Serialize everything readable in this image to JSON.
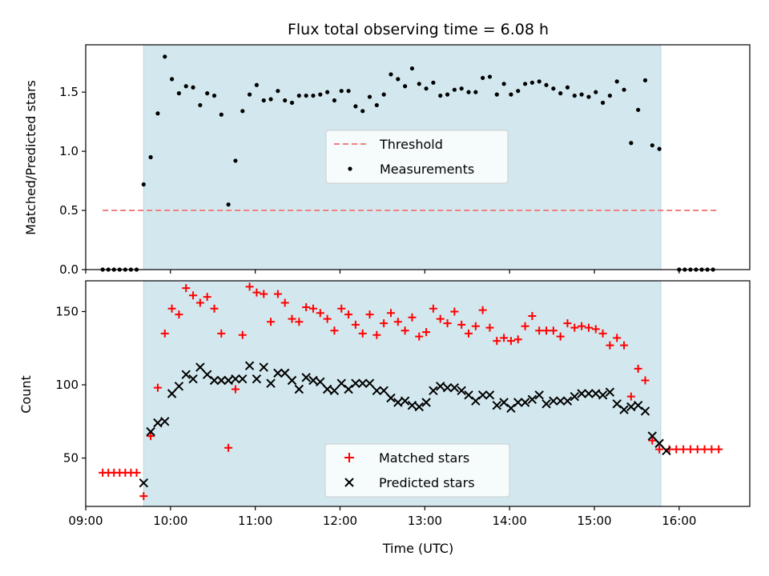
{
  "chart_data": [
    {
      "type": "scatter",
      "title": "Flux total observing time = 6.08 h",
      "xlabel": "",
      "ylabel": "Matched/Predicted stars",
      "xlim": [
        "09:00",
        "16:50"
      ],
      "ylim": [
        0,
        1.9
      ],
      "x_ticks": [
        "09:00",
        "10:00",
        "11:00",
        "12:00",
        "13:00",
        "14:00",
        "15:00",
        "16:00"
      ],
      "x_tick_labels_shown": false,
      "y_ticks": [
        "0.0",
        "0.5",
        "1.0",
        "1.5"
      ],
      "shaded_interval": [
        "09:41",
        "15:47"
      ],
      "shaded_color": "#d3e8ee",
      "grid": false,
      "legend_position": "center",
      "legend": [
        "Threshold",
        "Measurements"
      ],
      "threshold": {
        "name": "Threshold",
        "value": 0.5,
        "x": [
          "09:12",
          "16:27"
        ],
        "color": "#f08080",
        "style": "dashed"
      },
      "series": [
        {
          "name": "Measurements",
          "marker": "dot",
          "color": "#000000",
          "points": [
            [
              "09:12",
              0
            ],
            [
              "09:16",
              0
            ],
            [
              "09:20",
              0
            ],
            [
              "09:24",
              0
            ],
            [
              "09:28",
              0
            ],
            [
              "09:32",
              0
            ],
            [
              "09:36",
              0
            ],
            [
              "09:41",
              0.72
            ],
            [
              "09:46",
              0.95
            ],
            [
              "09:51",
              1.32
            ],
            [
              "09:56",
              1.8
            ],
            [
              "10:01",
              1.61
            ],
            [
              "10:06",
              1.49
            ],
            [
              "10:11",
              1.55
            ],
            [
              "10:16",
              1.54
            ],
            [
              "10:21",
              1.39
            ],
            [
              "10:26",
              1.49
            ],
            [
              "10:31",
              1.47
            ],
            [
              "10:36",
              1.31
            ],
            [
              "10:41",
              0.55
            ],
            [
              "10:46",
              0.92
            ],
            [
              "10:51",
              1.34
            ],
            [
              "10:56",
              1.48
            ],
            [
              "11:01",
              1.56
            ],
            [
              "11:06",
              1.43
            ],
            [
              "11:11",
              1.44
            ],
            [
              "11:16",
              1.51
            ],
            [
              "11:21",
              1.43
            ],
            [
              "11:26",
              1.41
            ],
            [
              "11:31",
              1.47
            ],
            [
              "11:36",
              1.47
            ],
            [
              "11:41",
              1.47
            ],
            [
              "11:46",
              1.48
            ],
            [
              "11:51",
              1.5
            ],
            [
              "11:56",
              1.43
            ],
            [
              "12:01",
              1.51
            ],
            [
              "12:06",
              1.51
            ],
            [
              "12:11",
              1.38
            ],
            [
              "12:16",
              1.34
            ],
            [
              "12:21",
              1.46
            ],
            [
              "12:26",
              1.39
            ],
            [
              "12:31",
              1.48
            ],
            [
              "12:36",
              1.65
            ],
            [
              "12:41",
              1.61
            ],
            [
              "12:46",
              1.55
            ],
            [
              "12:51",
              1.7
            ],
            [
              "12:56",
              1.57
            ],
            [
              "13:01",
              1.53
            ],
            [
              "13:06",
              1.58
            ],
            [
              "13:11",
              1.47
            ],
            [
              "13:16",
              1.48
            ],
            [
              "13:21",
              1.52
            ],
            [
              "13:26",
              1.53
            ],
            [
              "13:31",
              1.5
            ],
            [
              "13:36",
              1.5
            ],
            [
              "13:41",
              1.62
            ],
            [
              "13:46",
              1.63
            ],
            [
              "13:51",
              1.48
            ],
            [
              "13:56",
              1.57
            ],
            [
              "14:01",
              1.48
            ],
            [
              "14:06",
              1.51
            ],
            [
              "14:11",
              1.57
            ],
            [
              "14:16",
              1.58
            ],
            [
              "14:21",
              1.59
            ],
            [
              "14:26",
              1.56
            ],
            [
              "14:31",
              1.53
            ],
            [
              "14:36",
              1.49
            ],
            [
              "14:41",
              1.54
            ],
            [
              "14:46",
              1.47
            ],
            [
              "14:51",
              1.48
            ],
            [
              "14:56",
              1.46
            ],
            [
              "15:01",
              1.5
            ],
            [
              "15:06",
              1.41
            ],
            [
              "15:11",
              1.47
            ],
            [
              "15:16",
              1.59
            ],
            [
              "15:21",
              1.52
            ],
            [
              "15:26",
              1.07
            ],
            [
              "15:31",
              1.35
            ],
            [
              "15:36",
              1.6
            ],
            [
              "15:41",
              1.05
            ],
            [
              "15:46",
              1.02
            ],
            [
              "16:00",
              0
            ],
            [
              "16:04",
              0
            ],
            [
              "16:08",
              0
            ],
            [
              "16:12",
              0
            ],
            [
              "16:16",
              0
            ],
            [
              "16:20",
              0
            ],
            [
              "16:24",
              0
            ]
          ]
        }
      ]
    },
    {
      "type": "scatter",
      "title": "",
      "xlabel": "Time (UTC)",
      "ylabel": "Count",
      "xlim": [
        "09:00",
        "16:50"
      ],
      "ylim": [
        17,
        171
      ],
      "x_ticks": [
        "09:00",
        "10:00",
        "11:00",
        "12:00",
        "13:00",
        "14:00",
        "15:00",
        "16:00"
      ],
      "x_tick_labels_shown": true,
      "y_ticks": [
        "50",
        "100",
        "150"
      ],
      "shaded_interval": [
        "09:41",
        "15:47"
      ],
      "shaded_color": "#d3e8ee",
      "grid": false,
      "legend_position": "bottom-center",
      "legend": [
        "Matched stars",
        "Predicted stars"
      ],
      "series": [
        {
          "name": "Matched stars",
          "marker": "plus",
          "color": "#ff0000",
          "points": [
            [
              "09:12",
              40
            ],
            [
              "09:16",
              40
            ],
            [
              "09:20",
              40
            ],
            [
              "09:24",
              40
            ],
            [
              "09:28",
              40
            ],
            [
              "09:32",
              40
            ],
            [
              "09:36",
              40
            ],
            [
              "09:41",
              24
            ],
            [
              "09:46",
              65
            ],
            [
              "09:51",
              98
            ],
            [
              "09:56",
              135
            ],
            [
              "10:01",
              152
            ],
            [
              "10:06",
              148
            ],
            [
              "10:11",
              166
            ],
            [
              "10:16",
              161
            ],
            [
              "10:21",
              156
            ],
            [
              "10:26",
              160
            ],
            [
              "10:31",
              152
            ],
            [
              "10:36",
              135
            ],
            [
              "10:41",
              57
            ],
            [
              "10:46",
              97
            ],
            [
              "10:51",
              134
            ],
            [
              "10:56",
              167
            ],
            [
              "11:01",
              163
            ],
            [
              "11:06",
              162
            ],
            [
              "11:11",
              143
            ],
            [
              "11:16",
              162
            ],
            [
              "11:21",
              156
            ],
            [
              "11:26",
              145
            ],
            [
              "11:31",
              143
            ],
            [
              "11:36",
              153
            ],
            [
              "11:41",
              152
            ],
            [
              "11:46",
              149
            ],
            [
              "11:51",
              145
            ],
            [
              "11:56",
              137
            ],
            [
              "12:01",
              152
            ],
            [
              "12:06",
              148
            ],
            [
              "12:11",
              141
            ],
            [
              "12:16",
              135
            ],
            [
              "12:21",
              148
            ],
            [
              "12:26",
              134
            ],
            [
              "12:31",
              142
            ],
            [
              "12:36",
              149
            ],
            [
              "12:41",
              143
            ],
            [
              "12:46",
              137
            ],
            [
              "12:51",
              146
            ],
            [
              "12:56",
              133
            ],
            [
              "13:01",
              136
            ],
            [
              "13:06",
              152
            ],
            [
              "13:11",
              145
            ],
            [
              "13:16",
              142
            ],
            [
              "13:21",
              150
            ],
            [
              "13:26",
              141
            ],
            [
              "13:31",
              135
            ],
            [
              "13:36",
              140
            ],
            [
              "13:41",
              151
            ],
            [
              "13:46",
              139
            ],
            [
              "13:51",
              130
            ],
            [
              "13:56",
              132
            ],
            [
              "14:01",
              130
            ],
            [
              "14:06",
              131
            ],
            [
              "14:11",
              140
            ],
            [
              "14:16",
              147
            ],
            [
              "14:21",
              137
            ],
            [
              "14:26",
              137
            ],
            [
              "14:31",
              137
            ],
            [
              "14:36",
              133
            ],
            [
              "14:41",
              142
            ],
            [
              "14:46",
              139
            ],
            [
              "14:51",
              140
            ],
            [
              "14:56",
              139
            ],
            [
              "15:01",
              138
            ],
            [
              "15:06",
              135
            ],
            [
              "15:11",
              127
            ],
            [
              "15:16",
              132
            ],
            [
              "15:21",
              127
            ],
            [
              "15:26",
              92
            ],
            [
              "15:31",
              111
            ],
            [
              "15:36",
              103
            ],
            [
              "15:41",
              62
            ],
            [
              "15:46",
              56
            ],
            [
              "15:53",
              56
            ],
            [
              "15:58",
              56
            ],
            [
              "16:03",
              56
            ],
            [
              "16:08",
              56
            ],
            [
              "16:13",
              56
            ],
            [
              "16:18",
              56
            ],
            [
              "16:23",
              56
            ],
            [
              "16:28",
              56
            ]
          ]
        },
        {
          "name": "Predicted stars",
          "marker": "x",
          "color": "#000000",
          "points": [
            [
              "09:41",
              33
            ],
            [
              "09:46",
              68
            ],
            [
              "09:51",
              74
            ],
            [
              "09:56",
              75
            ],
            [
              "10:01",
              94
            ],
            [
              "10:06",
              99
            ],
            [
              "10:11",
              107
            ],
            [
              "10:16",
              104
            ],
            [
              "10:21",
              112
            ],
            [
              "10:26",
              107
            ],
            [
              "10:31",
              103
            ],
            [
              "10:36",
              103
            ],
            [
              "10:41",
              103
            ],
            [
              "10:46",
              104
            ],
            [
              "10:51",
              104
            ],
            [
              "10:56",
              113
            ],
            [
              "11:01",
              104
            ],
            [
              "11:06",
              112
            ],
            [
              "11:11",
              101
            ],
            [
              "11:16",
              108
            ],
            [
              "11:21",
              108
            ],
            [
              "11:26",
              103
            ],
            [
              "11:31",
              97
            ],
            [
              "11:36",
              105
            ],
            [
              "11:41",
              103
            ],
            [
              "11:46",
              102
            ],
            [
              "11:51",
              97
            ],
            [
              "11:56",
              96
            ],
            [
              "12:01",
              101
            ],
            [
              "12:06",
              97
            ],
            [
              "12:11",
              101
            ],
            [
              "12:16",
              101
            ],
            [
              "12:21",
              101
            ],
            [
              "12:26",
              96
            ],
            [
              "12:31",
              96
            ],
            [
              "12:36",
              91
            ],
            [
              "12:41",
              88
            ],
            [
              "12:46",
              89
            ],
            [
              "12:51",
              86
            ],
            [
              "12:56",
              85
            ],
            [
              "13:01",
              88
            ],
            [
              "13:06",
              96
            ],
            [
              "13:11",
              99
            ],
            [
              "13:16",
              98
            ],
            [
              "13:21",
              98
            ],
            [
              "13:26",
              96
            ],
            [
              "13:31",
              93
            ],
            [
              "13:36",
              89
            ],
            [
              "13:41",
              93
            ],
            [
              "13:46",
              93
            ],
            [
              "13:51",
              86
            ],
            [
              "13:56",
              88
            ],
            [
              "14:01",
              84
            ],
            [
              "14:06",
              88
            ],
            [
              "14:11",
              88
            ],
            [
              "14:16",
              90
            ],
            [
              "14:21",
              93
            ],
            [
              "14:26",
              87
            ],
            [
              "14:31",
              89
            ],
            [
              "14:36",
              89
            ],
            [
              "14:41",
              89
            ],
            [
              "14:46",
              92
            ],
            [
              "14:51",
              94
            ],
            [
              "14:56",
              94
            ],
            [
              "15:01",
              94
            ],
            [
              "15:06",
              93
            ],
            [
              "15:11",
              95
            ],
            [
              "15:16",
              87
            ],
            [
              "15:21",
              83
            ],
            [
              "15:26",
              85
            ],
            [
              "15:31",
              86
            ],
            [
              "15:36",
              82
            ],
            [
              "15:41",
              65
            ],
            [
              "15:46",
              60
            ],
            [
              "15:51",
              55
            ]
          ]
        }
      ]
    }
  ]
}
